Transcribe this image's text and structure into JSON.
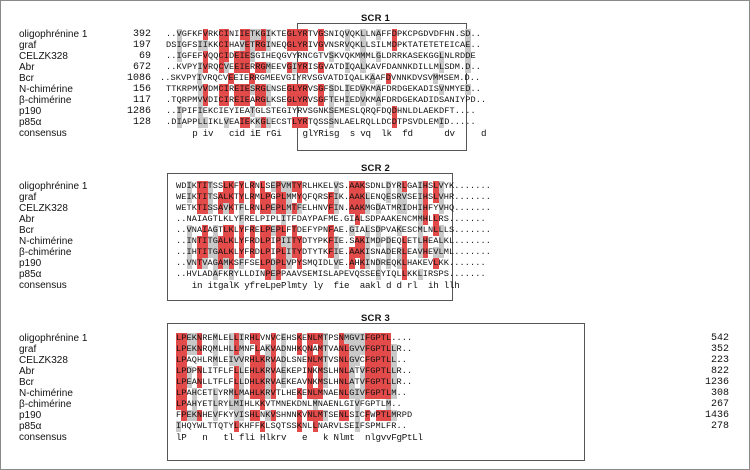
{
  "colors": {
    "identical": "#e34b4b",
    "similar": "#c9c9c9",
    "box": "#555555"
  },
  "blocks": [
    {
      "title": "SCR 1",
      "rows": [
        {
          "name": "oligophrénine 1",
          "num": "392",
          "seq": "..VGFKFVRKCINIIETKGIKTEGLYRTVGSNIQVQKLLNAFFDPKCPGDVDFHN.SD.."
        },
        {
          "name": "graf",
          "num": "197",
          "seq": "DSIGFSIIKKCIHAVETRGINEQGLYRIVGVNSRVQKLLSILMDPKTATETETEICAE.."
        },
        {
          "name": "CELZK328",
          "num": "69",
          "seq": "..IGFEFVQQCIDEIESGIHEQGVYRNCGTVSKVQKMMMLGLDRRKASEKGGLNLRDDE"
        },
        {
          "name": "Abr",
          "num": "672",
          "seq": "..KVPYIVRQCVEEIERRGMEEVGIYRISGVATDIQALKAVFDANNKDILLMLSDM.D.."
        },
        {
          "name": "Bcr",
          "num": "1086",
          "seq": "..SKVPYIVRQCVEEIERRGMEEVGIYRVSGVATDIQALKAAFDVNNKDVSVMMSEM.D.."
        },
        {
          "name": "N-chimérine",
          "num": "156",
          "seq": "TTKRPMVVDMCIREIESRGLNSEGLYRVSGFSDLIEDVKMAFDRDGEKADISVNMYED.."
        },
        {
          "name": "β-chimérine",
          "num": "117",
          "seq": ".TQRPMVVDICIREIEARGLKSEGLYRVSGFTEHIEDVKMAFDRDGEKADIDSANIYPD.."
        },
        {
          "name": "p190",
          "num": "1286",
          "seq": "..IPIFIEKCIEYIEATGLSTEGIYRVSGNKSEMESLQRQFDQDHNLDLAEKDFT...."
        },
        {
          "name": "p85α",
          "num": "128",
          "seq": ".DIAPPLLIKLVEAIEKKGLECSTLYRTQSSSNLAELRQLLDCDTPSVDLEMID....."
        }
      ],
      "consensus": {
        "label": "consensus",
        "seq": "     p iv   cid iE rGi    glYRisg  s vq  lk  fd      dv     d  "
      }
    },
    {
      "title": "SCR 2",
      "rows": [
        {
          "name": "oligophrénine 1",
          "num": "",
          "seq": "WDIKTITSSLKFYLRNLSEPVMTYRLHKELVS.AAKSDNLDYRLGAIHSLVYK......."
        },
        {
          "name": "graf",
          "num": "",
          "seq": "WEIKTITSALKTYLRMLPGPLMMYQFQRSFIK.AAKLENQESRVSEIHSLVHR......."
        },
        {
          "name": "CELZK328",
          "num": "",
          "seq": "WETKTISSAVKTFLRNLPEPLMTFELHNVFIN.AAKMGDATMRIDHIHFYVHQ......."
        },
        {
          "name": "Abr",
          "num": "",
          "seq": "..NAIAGTLKLYFRELPIPLITFDAYPAFME.GIALSDPAAKENCMMHLLRS......."
        },
        {
          "name": "Bcr",
          "num": "",
          "seq": "..VNAIAGTLKLYFRELPEPLFTDEFYPNFAE.GIALSDPVAKESCMLNLLLS......."
        },
        {
          "name": "N-chimérine",
          "num": "",
          "seq": "..INTITGALKLYFRDLPIPIITYDTYPKFIE.SAKIMDPDEQLETLHEALKL......."
        },
        {
          "name": "β-chimérine",
          "num": "",
          "seq": "..IHTITGALKLYFRDLPIPLITYDTYTKFIE.AAKISNADERLEAVHEVLML......."
        },
        {
          "name": "p190",
          "num": "",
          "seq": "..VNTVAGAMKSFFSELPDPLVPYSMQIDLVE.AHKINDREQKLHAKEVLKK......."
        },
        {
          "name": "p85α",
          "num": "",
          "seq": "..HVLADAFKRYLLDINPEPPAAVSEMISLAPEVQSSEEYIQLLKKLIRSPS......."
        }
      ],
      "consensus": {
        "label": "consensus",
        "seq": "   in itgalK yfreLpePlmty ly  fie  aakl d d rl  ih llh        "
      }
    },
    {
      "title": "SCR 3",
      "rows": [
        {
          "name": "oligophrénine 1",
          "num": "542",
          "seq": "LPEKNREMLELLIRHLVNVCEHSKENLMTPSNMGVIFGPTL...."
        },
        {
          "name": "graf",
          "num": "352",
          "seq": "LPEKNRQMLHLLMNFLAKVADNHKQNAMTVANLGVVFGPTLLR.."
        },
        {
          "name": "CELZK328",
          "num": "223",
          "seq": "LPAQHLRMLEIVVRHLKRVADLSNENLMTVSNLGVCFGPTLL.."
        },
        {
          "name": "Abr",
          "num": "822",
          "seq": "LPDPNLITFLFLLEHLKRVAEKEPINKMSLHNLATVFGPTLLR.."
        },
        {
          "name": "Bcr",
          "num": "1236",
          "seq": "LPEANLLTFLFLLDHLKRVAEKEAVNKMSLHNLATVFGPTLLR.."
        },
        {
          "name": "N-chimérine",
          "num": "308",
          "seq": "LPAHCETLYRMLMAHLKRVTLHEKENLMNAENLGIVFGPTLM.."
        },
        {
          "name": "β-chimérine",
          "num": "267",
          "seq": "LPAHYETLRYLMIHLKKVTMNEKDNLMNAENLGIVFGPTLM.."
        },
        {
          "name": "p190",
          "num": "1436",
          "seq": "FPEKNHEVFKYVISHLNKVSHNNKVNLMTSENLSICFWPTLMRPD"
        },
        {
          "name": "p85α",
          "num": "278",
          "seq": "IHQYWLTTQTYLKHFFKLSQTSSKNLLNARVLSEIFSPMLFR.."
        }
      ],
      "consensus": {
        "label": "consensus",
        "seq": "lP   n   tl fli Hlkrv   e   k Nlmt  nlgvvFgPtLl   "
      }
    }
  ]
}
